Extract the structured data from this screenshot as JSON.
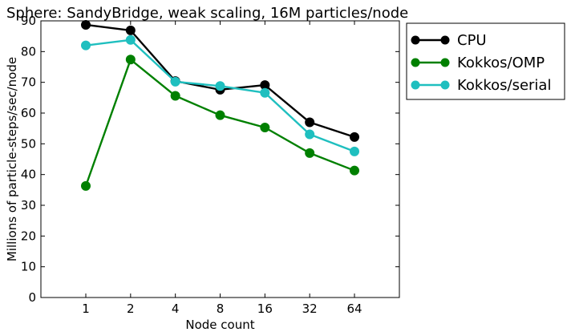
{
  "chart_data": {
    "type": "line",
    "title": "Sphere: SandyBridge, weak scaling, 16M particles/node",
    "xlabel": "Node count",
    "ylabel": "Millions of particle-steps/sec/node",
    "categories": [
      "1",
      "2",
      "4",
      "8",
      "16",
      "32",
      "64"
    ],
    "ylim": [
      0,
      90
    ],
    "yticks": [
      0,
      10,
      20,
      30,
      40,
      50,
      60,
      70,
      80,
      90
    ],
    "grid": false,
    "legend_position": "outside-right-top",
    "series": [
      {
        "name": "CPU",
        "color": "#000000",
        "values": [
          88.7,
          86.9,
          70.4,
          67.6,
          69.1,
          57.0,
          52.2
        ]
      },
      {
        "name": "Kokkos/OMP",
        "color": "#008000",
        "values": [
          36.3,
          77.4,
          65.6,
          59.3,
          55.3,
          47.0,
          41.3
        ]
      },
      {
        "name": "Kokkos/serial",
        "color": "#1fbfbf",
        "values": [
          82.0,
          83.8,
          70.2,
          68.8,
          66.6,
          53.1,
          47.5
        ]
      }
    ]
  }
}
